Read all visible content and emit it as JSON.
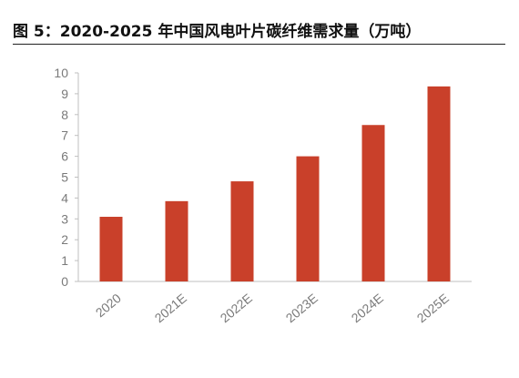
{
  "title": "图 5：2020-2025 年中国风电叶片碳纤维需求量（万吨）",
  "chart_data": {
    "type": "bar",
    "categories": [
      "2020",
      "2021E",
      "2022E",
      "2023E",
      "2024E",
      "2025E"
    ],
    "values": [
      3.1,
      3.85,
      4.8,
      6.0,
      7.5,
      9.35
    ],
    "ylim": [
      0,
      10
    ],
    "yticks": [
      "0",
      "1",
      "2",
      "3",
      "4",
      "5",
      "6",
      "7",
      "8",
      "9",
      "10"
    ],
    "bar_color": "#c9402a",
    "grid": false,
    "legend": "none"
  }
}
